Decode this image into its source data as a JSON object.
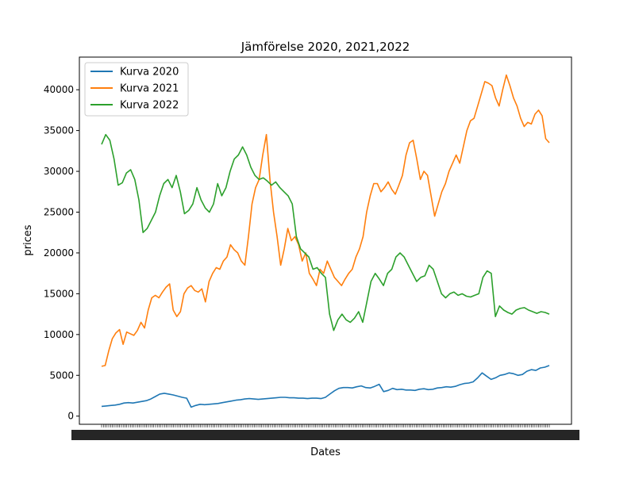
{
  "chart_data": {
    "type": "line",
    "title": "Jämförelse 2020, 2021,2022",
    "xlabel": "Dates",
    "ylabel": "prices",
    "ylim": [
      -1000,
      44000
    ],
    "y_ticks": [
      0,
      5000,
      10000,
      15000,
      20000,
      25000,
      30000,
      35000,
      40000
    ],
    "x_tick_count": 250,
    "legend_position": "top-left",
    "grid": false,
    "series": [
      {
        "name": "Kurva 2020",
        "color": "#1f77b4",
        "values": [
          1200,
          1250,
          1300,
          1350,
          1450,
          1600,
          1650,
          1600,
          1700,
          1800,
          1900,
          2100,
          2400,
          2700,
          2800,
          2700,
          2600,
          2450,
          2300,
          2200,
          1100,
          1300,
          1450,
          1400,
          1450,
          1500,
          1550,
          1650,
          1750,
          1850,
          1950,
          2000,
          2100,
          2150,
          2100,
          2050,
          2100,
          2150,
          2200,
          2250,
          2300,
          2300,
          2250,
          2250,
          2200,
          2200,
          2150,
          2200,
          2200,
          2150,
          2300,
          2700,
          3100,
          3400,
          3500,
          3500,
          3450,
          3600,
          3700,
          3500,
          3450,
          3650,
          3900,
          3000,
          3150,
          3400,
          3250,
          3300,
          3200,
          3200,
          3150,
          3300,
          3350,
          3250,
          3300,
          3450,
          3500,
          3600,
          3550,
          3650,
          3850,
          4000,
          4050,
          4200,
          4700,
          5300,
          4900,
          4500,
          4700,
          5000,
          5100,
          5300,
          5200,
          5000,
          5100,
          5500,
          5700,
          5600,
          5900,
          6000,
          6200
        ]
      },
      {
        "name": "Kurva 2021",
        "color": "#ff7f0e",
        "values": [
          6100,
          6200,
          8000,
          9500,
          10200,
          10600,
          8800,
          10300,
          10100,
          9900,
          10500,
          11500,
          10800,
          13000,
          14500,
          14800,
          14500,
          15200,
          15800,
          16200,
          13000,
          12200,
          12800,
          15000,
          15700,
          16000,
          15400,
          15200,
          15600,
          14000,
          16500,
          17500,
          18200,
          18000,
          19000,
          19500,
          21000,
          20400,
          20000,
          19000,
          18500,
          22000,
          26000,
          28000,
          29000,
          32000,
          34500,
          29000,
          25000,
          22000,
          18500,
          20500,
          23000,
          21500,
          22000,
          21000,
          19000,
          20000,
          17500,
          16800,
          16000,
          18000,
          17500,
          19000,
          18000,
          17000,
          16500,
          16000,
          16800,
          17500,
          18000,
          19500,
          20500,
          22000,
          25000,
          27000,
          28500,
          28500,
          27500,
          28000,
          28700,
          27800,
          27200,
          28300,
          29500,
          32000,
          33500,
          33800,
          31500,
          29000,
          30000,
          29500,
          27000,
          24500,
          26000,
          27500,
          28500,
          30000,
          31000,
          32000,
          31000,
          33000,
          35000,
          36200,
          36500,
          38000,
          39500,
          41000,
          40800,
          40500,
          39000,
          38000,
          40000,
          41800,
          40500,
          39000,
          38000,
          36500,
          35500,
          36000,
          35800,
          37000,
          37500,
          36800,
          34000,
          33500
        ]
      },
      {
        "name": "Kurva 2022",
        "color": "#2ca02c",
        "values": [
          33300,
          34500,
          33800,
          31500,
          28300,
          28600,
          29800,
          30200,
          29000,
          26500,
          22500,
          23000,
          24000,
          25000,
          27000,
          28500,
          29000,
          28000,
          29500,
          27500,
          24800,
          25200,
          26000,
          28000,
          26500,
          25500,
          25000,
          26000,
          28500,
          27000,
          28000,
          30000,
          31500,
          32000,
          33000,
          32000,
          30500,
          29500,
          29000,
          29200,
          28800,
          28300,
          28700,
          28000,
          27500,
          27000,
          26000,
          22000,
          20500,
          20000,
          19500,
          18000,
          18200,
          17500,
          17000,
          12500,
          10500,
          11800,
          12500,
          11800,
          11500,
          12000,
          12800,
          11500,
          14000,
          16500,
          17500,
          16800,
          16000,
          17500,
          18000,
          19500,
          20000,
          19500,
          18500,
          17500,
          16500,
          17000,
          17200,
          18500,
          18000,
          16500,
          15000,
          14500,
          15000,
          15200,
          14800,
          15000,
          14700,
          14600,
          14800,
          15000,
          17000,
          17800,
          17500,
          12200,
          13500,
          13000,
          12700,
          12500,
          13000,
          13200,
          13300,
          13000,
          12800,
          12600,
          12800,
          12700,
          12500
        ]
      }
    ]
  }
}
